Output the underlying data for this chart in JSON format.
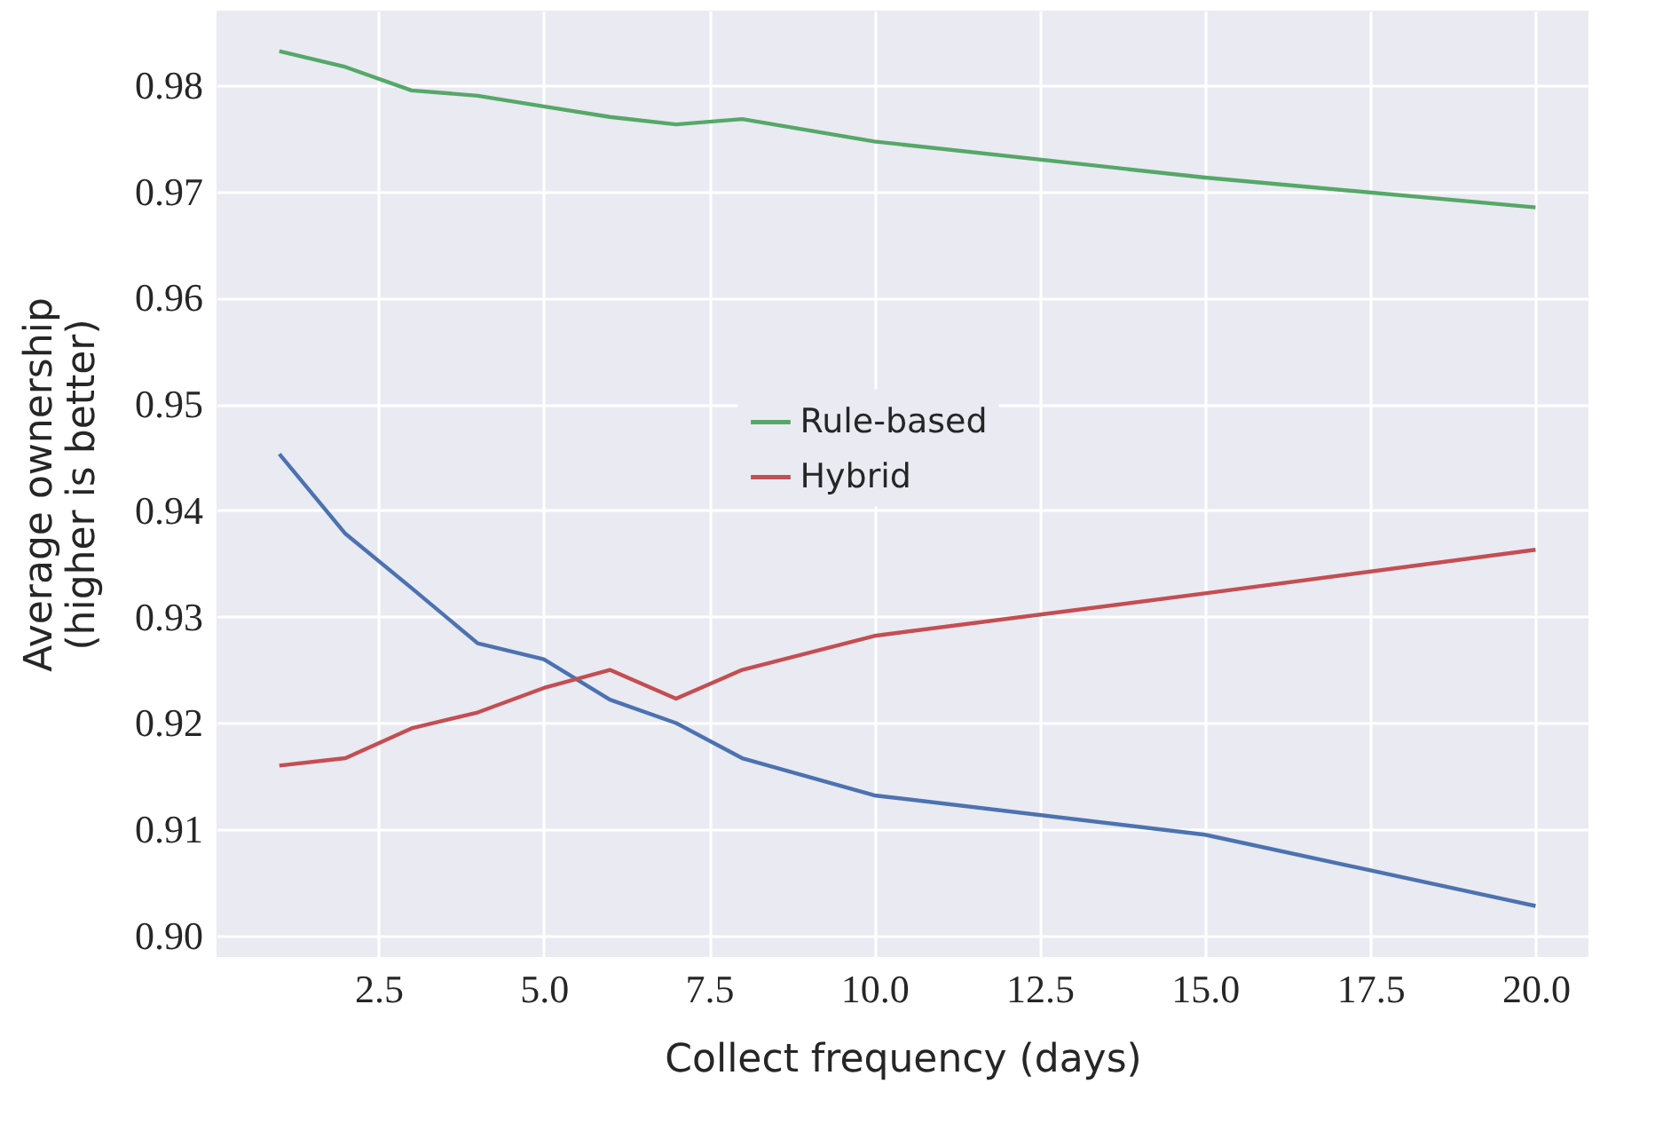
{
  "chart_data": {
    "type": "line",
    "xlabel": "Collect frequency (days)",
    "ylabel": "Average ownership\n(higher is better)",
    "x": [
      1,
      2,
      3,
      4,
      5,
      6,
      7,
      8,
      10,
      15,
      20
    ],
    "series": [
      {
        "color": "#4c72b0",
        "values": [
          0.9453,
          0.9378,
          0.9327,
          0.9275,
          0.926,
          0.9222,
          0.92,
          0.9167,
          0.9132,
          0.9095,
          0.9028
        ]
      },
      {
        "name": "Rule-based",
        "color": "#55a868",
        "values": [
          0.9832,
          0.9817,
          0.9795,
          0.979,
          0.978,
          0.977,
          0.9763,
          0.9768,
          0.9747,
          0.9713,
          0.9685
        ]
      },
      {
        "name": "Hybrid",
        "color": "#c44e52",
        "values": [
          0.916,
          0.9167,
          0.9195,
          0.921,
          0.9233,
          0.925,
          0.9223,
          0.925,
          0.9282,
          0.9322,
          0.9363
        ]
      }
    ],
    "xlim": [
      0.05,
      20.8
    ],
    "ylim": [
      0.898,
      0.987
    ],
    "xticks": [
      2.5,
      {
        "value": 5,
        "label": "5.0"
      },
      7.5,
      {
        "value": 10,
        "label": "10.0"
      },
      12.5,
      {
        "value": 15,
        "label": "15.0"
      },
      17.5,
      {
        "value": 20,
        "label": "20.0"
      }
    ],
    "yticks": [
      {
        "value": 0.9,
        "label": "0.90"
      },
      0.91,
      0.92,
      0.93,
      0.94,
      0.95,
      0.96,
      0.97,
      0.98
    ],
    "grid": true,
    "legend": "center",
    "marker": "none",
    "line_style": "solid"
  }
}
